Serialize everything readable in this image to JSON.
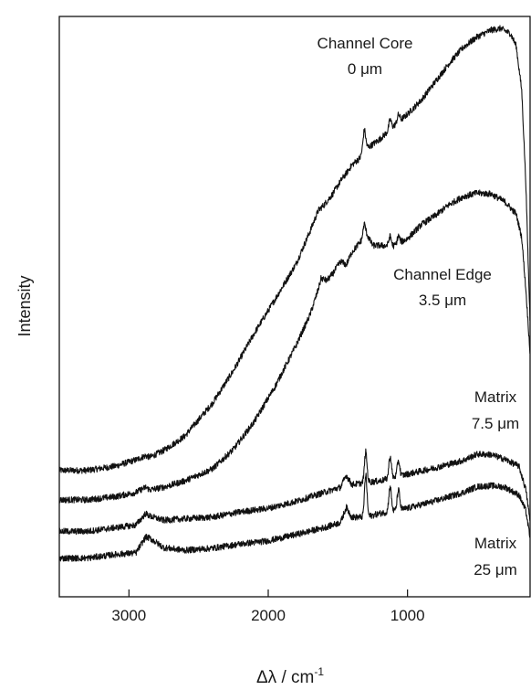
{
  "chart_data": {
    "type": "line",
    "xlabel": "Δλ / cm",
    "xlabel_sup": "-1",
    "ylabel": "Intensity",
    "xlim": [
      3500,
      120
    ],
    "x_reversed": true,
    "ylim": [
      0,
      1
    ],
    "x_ticks": [
      3000,
      2000,
      1000
    ],
    "x_tick_labels": [
      "3000",
      "2000",
      "1000"
    ],
    "y_ticks_labeled": false,
    "grid": false,
    "legend": "none",
    "line_color": "#111111",
    "series": [
      {
        "annotation": [
          "Channel Core",
          "0 μm"
        ],
        "points": [
          [
            3500,
            0.157
          ],
          [
            3300,
            0.157
          ],
          [
            3100,
            0.165
          ],
          [
            2950,
            0.177
          ],
          [
            2880,
            0.185
          ],
          [
            2850,
            0.182
          ],
          [
            2750,
            0.195
          ],
          [
            2600,
            0.222
          ],
          [
            2400,
            0.285
          ],
          [
            2250,
            0.347
          ],
          [
            2100,
            0.418
          ],
          [
            1950,
            0.483
          ],
          [
            1800,
            0.55
          ],
          [
            1700,
            0.612
          ],
          [
            1640,
            0.652
          ],
          [
            1600,
            0.662
          ],
          [
            1540,
            0.682
          ],
          [
            1470,
            0.712
          ],
          [
            1440,
            0.722
          ],
          [
            1400,
            0.738
          ],
          [
            1340,
            0.752
          ],
          [
            1310,
            0.775
          ],
          [
            1280,
            0.772
          ],
          [
            1200,
            0.787
          ],
          [
            1100,
            0.812
          ],
          [
            1000,
            0.835
          ],
          [
            900,
            0.862
          ],
          [
            800,
            0.897
          ],
          [
            700,
            0.932
          ],
          [
            600,
            0.962
          ],
          [
            500,
            0.982
          ],
          [
            400,
            0.995
          ],
          [
            330,
            0.998
          ],
          [
            260,
            0.988
          ],
          [
            220,
            0.965
          ],
          [
            180,
            0.88
          ],
          [
            150,
            0.7
          ],
          [
            130,
            0.52
          ],
          [
            120,
            0.44
          ]
        ],
        "peaks": [
          [
            1310,
            0.03
          ],
          [
            1125,
            0.018
          ],
          [
            1065,
            0.014
          ]
        ]
      },
      {
        "annotation": [
          "Channel Edge",
          "3.5 μm"
        ],
        "points": [
          [
            3500,
            0.101
          ],
          [
            3300,
            0.101
          ],
          [
            3100,
            0.107
          ],
          [
            2950,
            0.115
          ],
          [
            2880,
            0.125
          ],
          [
            2850,
            0.12
          ],
          [
            2750,
            0.125
          ],
          [
            2600,
            0.137
          ],
          [
            2400,
            0.16
          ],
          [
            2250,
            0.197
          ],
          [
            2100,
            0.25
          ],
          [
            1950,
            0.317
          ],
          [
            1800,
            0.395
          ],
          [
            1700,
            0.453
          ],
          [
            1640,
            0.502
          ],
          [
            1620,
            0.523
          ],
          [
            1580,
            0.518
          ],
          [
            1540,
            0.53
          ],
          [
            1480,
            0.555
          ],
          [
            1440,
            0.548
          ],
          [
            1400,
            0.572
          ],
          [
            1320,
            0.598
          ],
          [
            1290,
            0.605
          ],
          [
            1250,
            0.585
          ],
          [
            1200,
            0.585
          ],
          [
            1100,
            0.584
          ],
          [
            1000,
            0.598
          ],
          [
            900,
            0.625
          ],
          [
            800,
            0.642
          ],
          [
            700,
            0.663
          ],
          [
            600,
            0.678
          ],
          [
            500,
            0.685
          ],
          [
            400,
            0.683
          ],
          [
            300,
            0.668
          ],
          [
            220,
            0.645
          ],
          [
            180,
            0.6
          ],
          [
            150,
            0.5
          ],
          [
            130,
            0.42
          ],
          [
            120,
            0.38
          ]
        ],
        "peaks": [
          [
            1310,
            0.025
          ],
          [
            1125,
            0.018
          ],
          [
            1065,
            0.014
          ]
        ]
      },
      {
        "annotation": [
          "Matrix",
          "7.5 μm"
        ],
        "points": [
          [
            3500,
            0.041
          ],
          [
            3300,
            0.041
          ],
          [
            3100,
            0.048
          ],
          [
            2950,
            0.053
          ],
          [
            2880,
            0.075
          ],
          [
            2850,
            0.07
          ],
          [
            2750,
            0.062
          ],
          [
            2600,
            0.065
          ],
          [
            2400,
            0.068
          ],
          [
            2200,
            0.078
          ],
          [
            2000,
            0.085
          ],
          [
            1800,
            0.098
          ],
          [
            1600,
            0.115
          ],
          [
            1480,
            0.125
          ],
          [
            1440,
            0.148
          ],
          [
            1400,
            0.13
          ],
          [
            1300,
            0.134
          ],
          [
            1200,
            0.137
          ],
          [
            1000,
            0.15
          ],
          [
            800,
            0.162
          ],
          [
            600,
            0.176
          ],
          [
            500,
            0.188
          ],
          [
            400,
            0.187
          ],
          [
            300,
            0.178
          ],
          [
            200,
            0.165
          ],
          [
            150,
            0.12
          ],
          [
            130,
            0.08
          ],
          [
            120,
            0.06
          ]
        ],
        "peaks": [
          [
            1300,
            0.058
          ],
          [
            1125,
            0.042
          ],
          [
            1065,
            0.03
          ]
        ]
      },
      {
        "annotation": [
          "Matrix",
          "25 μm"
        ],
        "points": [
          [
            3500,
            -0.01
          ],
          [
            3300,
            -0.01
          ],
          [
            3100,
            -0.003
          ],
          [
            2950,
            0.0
          ],
          [
            2880,
            0.03
          ],
          [
            2850,
            0.028
          ],
          [
            2750,
            0.01
          ],
          [
            2600,
            0.005
          ],
          [
            2400,
            0.009
          ],
          [
            2200,
            0.017
          ],
          [
            2000,
            0.023
          ],
          [
            1800,
            0.035
          ],
          [
            1600,
            0.048
          ],
          [
            1480,
            0.058
          ],
          [
            1440,
            0.087
          ],
          [
            1400,
            0.068
          ],
          [
            1300,
            0.068
          ],
          [
            1200,
            0.075
          ],
          [
            1000,
            0.085
          ],
          [
            800,
            0.099
          ],
          [
            600,
            0.115
          ],
          [
            500,
            0.126
          ],
          [
            400,
            0.128
          ],
          [
            300,
            0.125
          ],
          [
            200,
            0.11
          ],
          [
            150,
            0.08
          ],
          [
            130,
            0.045
          ],
          [
            120,
            0.03
          ]
        ],
        "peaks": [
          [
            1300,
            0.08
          ],
          [
            1125,
            0.048
          ],
          [
            1065,
            0.038
          ]
        ]
      }
    ]
  }
}
